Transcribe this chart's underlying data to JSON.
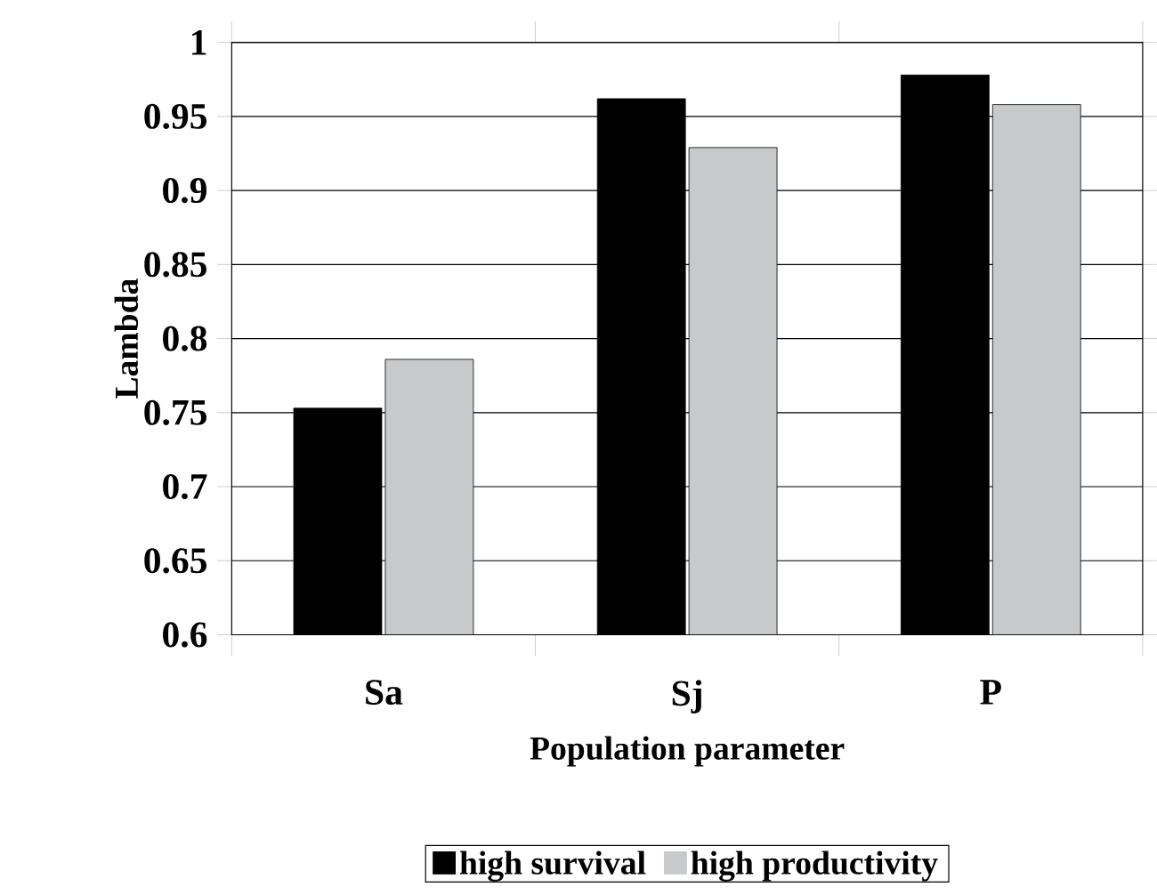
{
  "chart_data": {
    "type": "bar",
    "xlabel": "Population parameter",
    "ylabel": "Lambda",
    "categories": [
      "Sa",
      "Sj",
      "P"
    ],
    "series": [
      {
        "name": "high survival",
        "color": "#000000",
        "values": [
          0.753,
          0.962,
          0.978
        ]
      },
      {
        "name": "high productivity",
        "color": "#c8c9cb",
        "values": [
          0.786,
          0.929,
          0.958
        ]
      }
    ],
    "ylim": [
      0.6,
      1
    ],
    "yticks": [
      0.6,
      0.65,
      0.7,
      0.75,
      0.8,
      0.85,
      0.9,
      0.95,
      1
    ],
    "grid": "y",
    "legend": "bottom"
  }
}
